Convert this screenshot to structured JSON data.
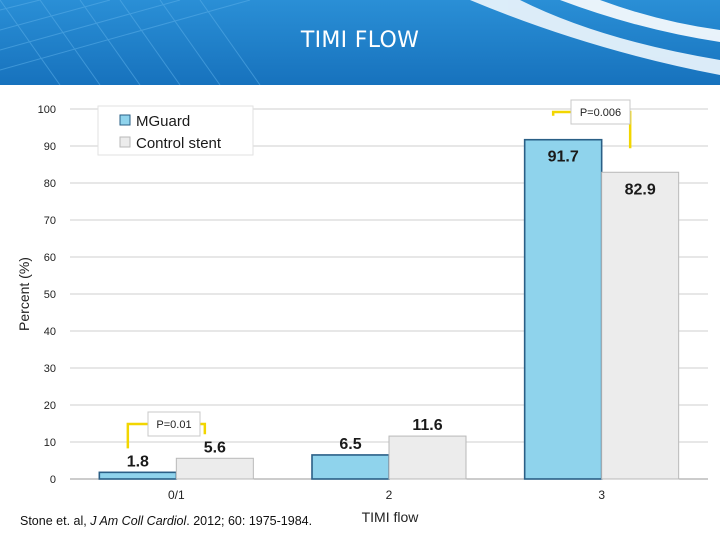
{
  "slide": {
    "title": "TIMI FLOW",
    "header_color": "#1f80c9"
  },
  "citation": {
    "authors": "Stone et. al, ",
    "journal": "J Am Coll Cardiol",
    "rest": ". 2012; 60: 1975-1984."
  },
  "chart_data": {
    "type": "bar",
    "title": "",
    "xlabel": "TIMI flow",
    "ylabel": "Percent (%)",
    "ylim": [
      0,
      100
    ],
    "yticks": [
      0,
      10,
      20,
      30,
      40,
      50,
      60,
      70,
      80,
      90,
      100
    ],
    "categories": [
      "0/1",
      "2",
      "3"
    ],
    "series": [
      {
        "name": "MGuard",
        "values": [
          1.8,
          6.5,
          91.7
        ],
        "color": "#8fd3ec"
      },
      {
        "name": "Control stent",
        "values": [
          5.6,
          11.6,
          82.9
        ],
        "color": "#ececec"
      }
    ],
    "data_labels": [
      [
        "1.8",
        "6.5",
        "91.7"
      ],
      [
        "5.6",
        "11.6",
        "82.9"
      ]
    ],
    "legend_position": "top-left",
    "grid": true,
    "annotations": [
      {
        "text": "P=0.01",
        "category_index": 0
      },
      {
        "text": "P=0.006",
        "category_index": 2
      }
    ]
  }
}
